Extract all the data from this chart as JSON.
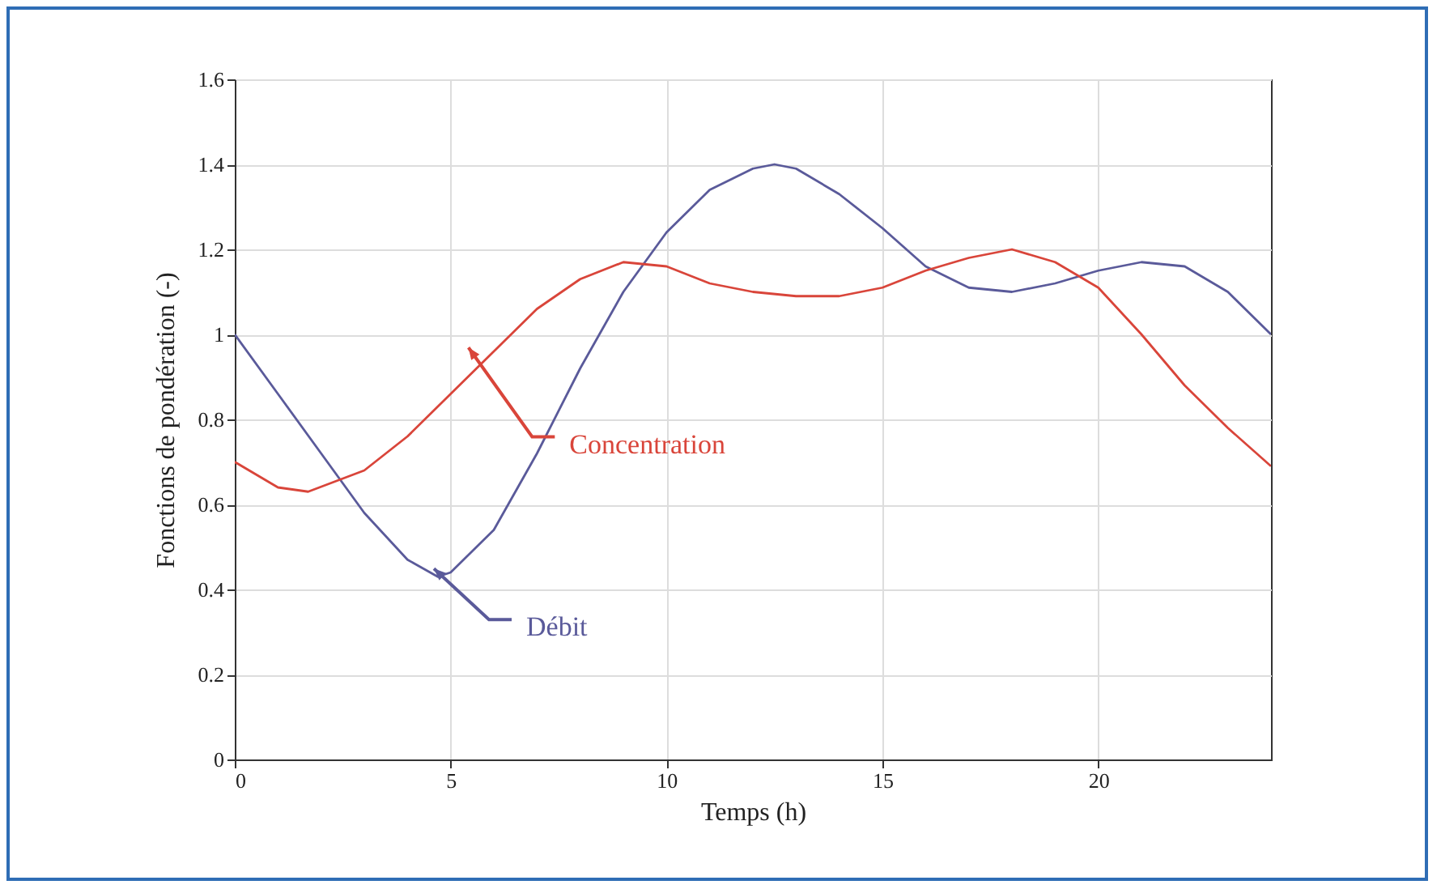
{
  "chart_data": {
    "type": "line",
    "xlabel": "Temps (h)",
    "ylabel": "Fonctions de pondération (-)",
    "xlim": [
      0,
      24
    ],
    "xticks": [
      0,
      5,
      10,
      15,
      20
    ],
    "ylim": [
      0,
      1.6
    ],
    "yticks": [
      0,
      0.2,
      0.4,
      0.6,
      0.8,
      1,
      1.2,
      1.4,
      1.6
    ],
    "grid": true,
    "series": [
      {
        "name": "Débit",
        "color": "#5a5a9a",
        "x": [
          0,
          1,
          2,
          3,
          4,
          4.7,
          5,
          6,
          7,
          8,
          9,
          10,
          11,
          12,
          12.5,
          13,
          14,
          15,
          16,
          17,
          18,
          19,
          20,
          21,
          22,
          23,
          24
        ],
        "values": [
          1.0,
          0.86,
          0.72,
          0.58,
          0.47,
          0.43,
          0.44,
          0.54,
          0.72,
          0.92,
          1.1,
          1.24,
          1.34,
          1.39,
          1.4,
          1.39,
          1.33,
          1.25,
          1.16,
          1.11,
          1.1,
          1.12,
          1.15,
          1.17,
          1.16,
          1.1,
          1.0
        ]
      },
      {
        "name": "Concentration",
        "color": "#d9453a",
        "x": [
          0,
          1,
          1.7,
          3,
          4,
          5,
          6,
          7,
          8,
          9,
          10,
          11,
          12,
          13,
          14,
          15,
          16,
          17,
          18,
          19,
          20,
          21,
          22,
          23,
          24
        ],
        "values": [
          0.7,
          0.64,
          0.63,
          0.68,
          0.76,
          0.86,
          0.96,
          1.06,
          1.13,
          1.17,
          1.16,
          1.12,
          1.1,
          1.09,
          1.09,
          1.11,
          1.15,
          1.18,
          1.2,
          1.17,
          1.11,
          1.0,
          0.88,
          0.78,
          0.69
        ]
      }
    ]
  }
}
